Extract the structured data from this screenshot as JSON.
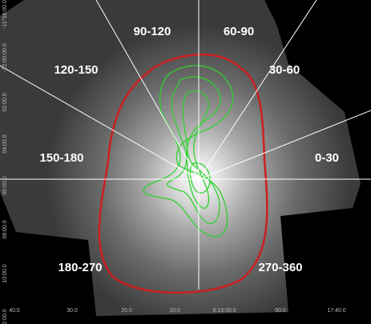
{
  "sectors": [
    "90-120",
    "60-90",
    "120-150",
    "30-60",
    "150-180",
    "0-30",
    "180-270",
    "270-360"
  ],
  "axes": {
    "dec_labels": [
      "-11°58:00.0",
      "-12:00:00.0",
      "02:00.0",
      "04:00.0",
      "06:00.0",
      "08:00.0",
      "10:00.0",
      "12:00.0"
    ],
    "ra_labels": [
      "40.0",
      "30.0",
      "20.0",
      "10.0",
      "9:13:00.0",
      "50.0",
      "17:40.0"
    ]
  }
}
